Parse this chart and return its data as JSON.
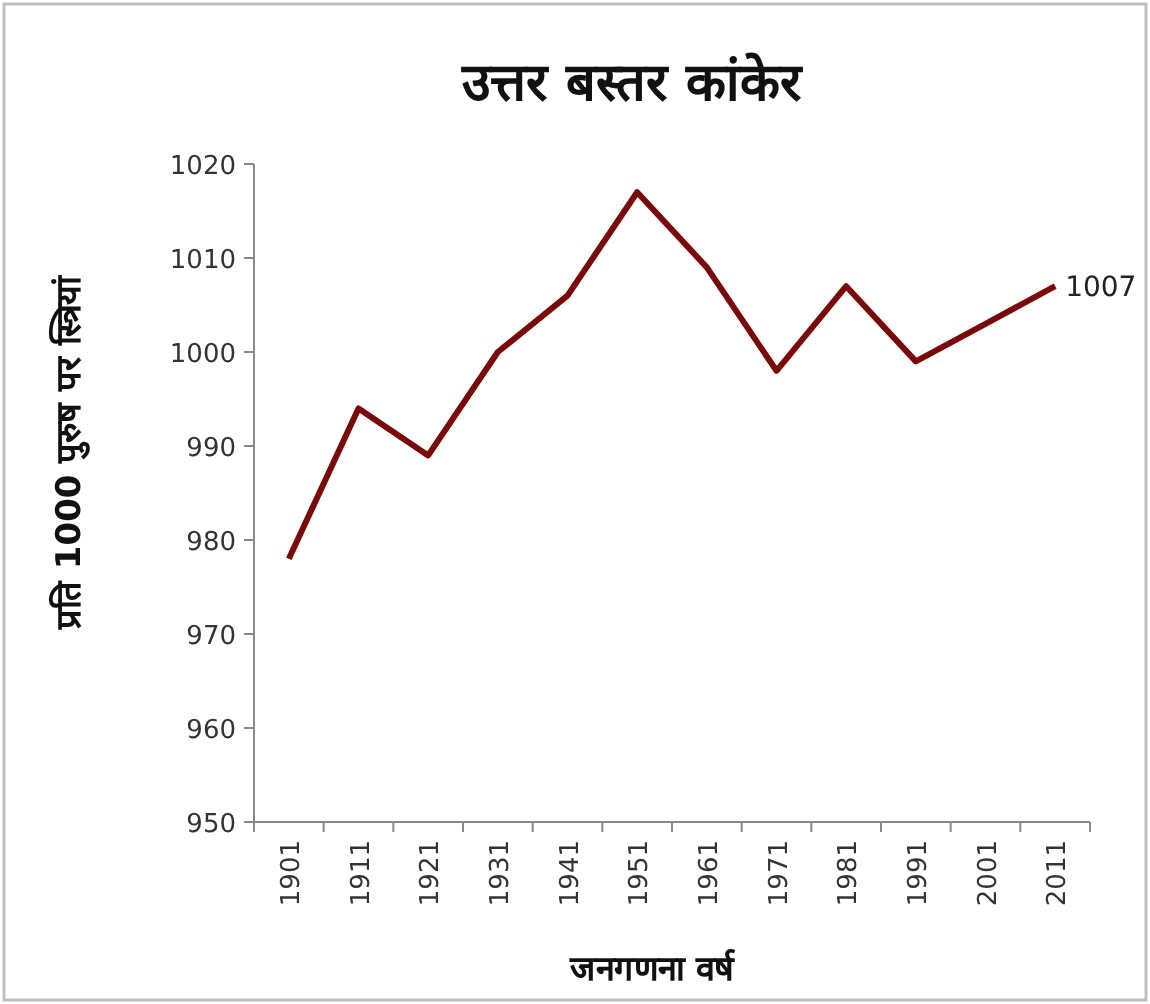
{
  "chart_data": {
    "type": "line",
    "title": "उत्तर बस्तर कांकेर",
    "xlabel": "जनगणना वर्ष",
    "ylabel": "प्रति 1000 पुरुष पर स्त्रियां",
    "categories": [
      "1901",
      "1911",
      "1921",
      "1931",
      "1941",
      "1951",
      "1961",
      "1971",
      "1981",
      "1991",
      "2001",
      "2011"
    ],
    "series": [
      {
        "color": "#7a0a0a",
        "values": [
          978,
          994,
          989,
          1000,
          1006,
          1017,
          1009,
          998,
          1007,
          999,
          1003,
          1007
        ]
      }
    ],
    "ylim": [
      950,
      1020
    ],
    "yticks": [
      950,
      960,
      970,
      980,
      990,
      1000,
      1010,
      1020
    ],
    "annotations": [
      {
        "text": "1007",
        "x": "2011",
        "y": 1007
      }
    ]
  }
}
